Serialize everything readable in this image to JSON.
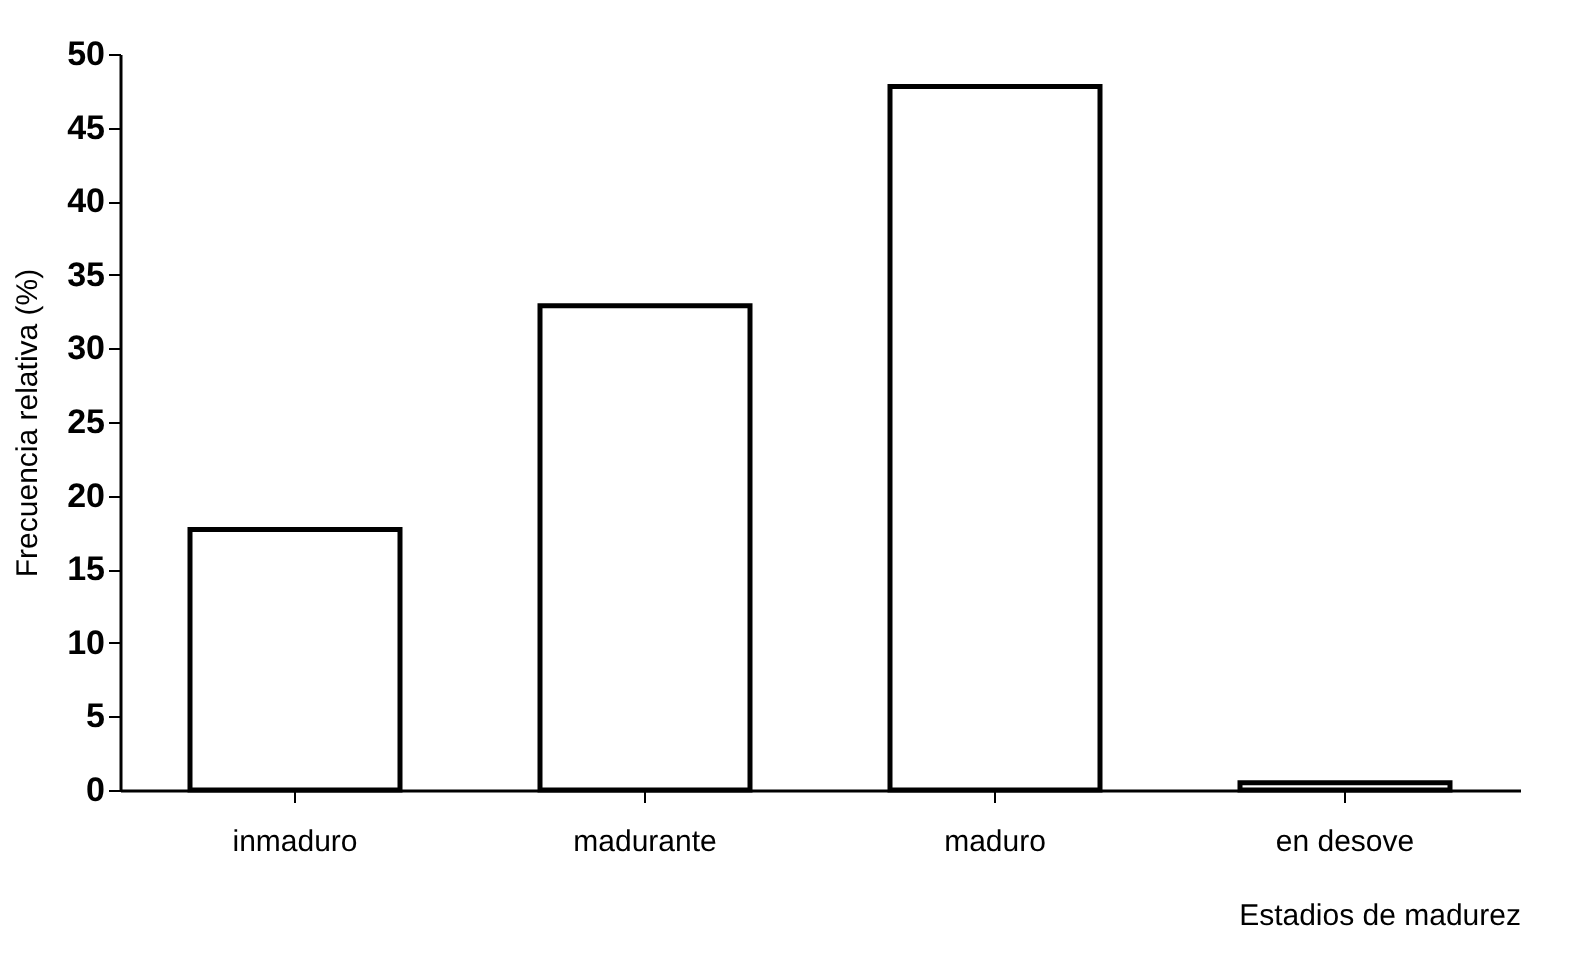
{
  "chart_data": {
    "type": "bar",
    "xlabel": "Estadios de madurez",
    "ylabel": "Frecuencia relativa (%)",
    "categories": [
      "inmaduro",
      "madurante",
      "maduro",
      "en desove"
    ],
    "values": [
      17.7,
      32.9,
      47.8,
      0.5
    ],
    "color": "#ffffff",
    "ylim": [
      0,
      50
    ],
    "yticks": [
      0,
      5,
      10,
      15,
      20,
      25,
      30,
      35,
      40,
      45,
      50
    ],
    "grid": false
  }
}
